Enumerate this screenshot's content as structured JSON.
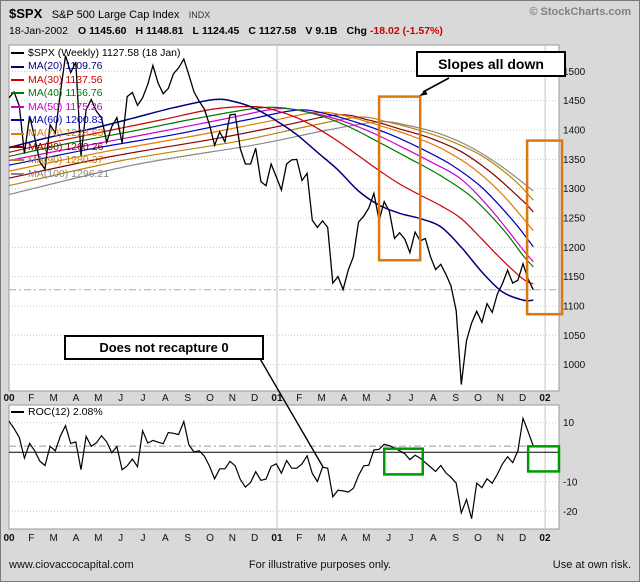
{
  "header": {
    "symbol": "$SPX",
    "name": "S&P 500 Large Cap Index",
    "exchange": "INDX",
    "copyright": "© StockCharts.com",
    "date": "18-Jan-2002",
    "quote": [
      {
        "label": "O",
        "value": "1145.60"
      },
      {
        "label": "H",
        "value": "1148.81"
      },
      {
        "label": "L",
        "value": "1124.45"
      },
      {
        "label": "C",
        "value": "1127.58"
      },
      {
        "label": "V",
        "value": "9.1B"
      },
      {
        "label": "Chg",
        "value": "-18.02 (-1.57%)",
        "value_color": "#cc0000"
      }
    ]
  },
  "legend": [
    {
      "text": "$SPX (Weekly) 1127.58 (18 Jan)",
      "color": "#000000"
    },
    {
      "text": "MA(20) 1109.76",
      "color": "#000080"
    },
    {
      "text": "MA(30) 1137.56",
      "color": "#cc0000"
    },
    {
      "text": "MA(40) 1166.76",
      "color": "#007700"
    },
    {
      "text": "MA(50) 1175.26",
      "color": "#cc00cc"
    },
    {
      "text": "MA(60) 1200.83",
      "color": "#0000b8"
    },
    {
      "text": "MA(70) 1228.53",
      "color": "#e07b00"
    },
    {
      "text": "MA(80) 1260.26",
      "color": "#8b0000"
    },
    {
      "text": "MA(90) 1280.37",
      "color": "#b8860b"
    },
    {
      "text": "MA(100) 1296.21",
      "color": "#888888"
    }
  ],
  "annotations": {
    "slopes_all_down": "Slopes all down",
    "does_not_recapture": "Does not recapture 0"
  },
  "footer": {
    "left": "www.ciovaccocapital.com",
    "center": "For illustrative purposes only.",
    "right": "Use at own risk."
  },
  "colors": {
    "background": "#d9d9d9",
    "plot_background": "#ffffff",
    "highlight_orange": "#dd7711",
    "highlight_green": "#009900",
    "change_negative": "#cc0000"
  },
  "chart_data": [
    {
      "panel": "price",
      "type": "line",
      "title": "$SPX (Weekly) 1127.58 (18 Jan)",
      "x_unit": "week index, 0 = Jan-2000, 102 = 18-Jan-2002",
      "x_labels": [
        "00",
        "F",
        "M",
        "A",
        "M",
        "J",
        "J",
        "A",
        "S",
        "O",
        "N",
        "D",
        "01",
        "F",
        "M",
        "A",
        "M",
        "J",
        "J",
        "A",
        "S",
        "O",
        "N",
        "D",
        "02"
      ],
      "ylim": [
        955,
        1545
      ],
      "yticks": [
        1000,
        1050,
        1100,
        1150,
        1200,
        1250,
        1300,
        1350,
        1400,
        1450,
        1500
      ],
      "last_close": 1127.58,
      "grid": true,
      "legend_position": "top-left",
      "series": [
        {
          "name": "$SPX",
          "color": "#000000",
          "values": [
            1455,
            1465,
            1441,
            1360,
            1424,
            1387,
            1346,
            1333,
            1409,
            1395,
            1464,
            1527,
            1498,
            1516,
            1356,
            1434,
            1452,
            1432,
            1421,
            1379,
            1406,
            1421,
            1378,
            1457,
            1464,
            1442,
            1455,
            1478,
            1510,
            1480,
            1462,
            1471,
            1496,
            1506,
            1521,
            1494,
            1465,
            1449,
            1436,
            1409,
            1374,
            1397,
            1380,
            1426,
            1427,
            1368,
            1342,
            1342,
            1369,
            1312,
            1305,
            1342,
            1320,
            1298,
            1342,
            1349,
            1350,
            1314,
            1326,
            1246,
            1234,
            1245,
            1234,
            1139,
            1150,
            1128,
            1161,
            1184,
            1243,
            1253,
            1267,
            1292,
            1246,
            1278,
            1261,
            1215,
            1225,
            1214,
            1191,
            1226,
            1211,
            1215,
            1184,
            1162,
            1171,
            1154,
            1134,
            1092,
            966,
            1041,
            1071,
            1091,
            1072,
            1104,
            1089,
            1120,
            1138,
            1161,
            1139,
            1144,
            1172,
            1146,
            1127.58
          ]
        },
        {
          "name": "MA(20)",
          "color": "#000080",
          "last": 1109.76,
          "points": [
            [
              0,
              1370
            ],
            [
              8,
              1388
            ],
            [
              16,
              1402
            ],
            [
              24,
              1420
            ],
            [
              32,
              1438
            ],
            [
              40,
              1452
            ],
            [
              44,
              1448
            ],
            [
              48,
              1436
            ],
            [
              52,
              1416
            ],
            [
              56,
              1392
            ],
            [
              60,
              1362
            ],
            [
              64,
              1332
            ],
            [
              68,
              1296
            ],
            [
              72,
              1272
            ],
            [
              76,
              1258
            ],
            [
              80,
              1249
            ],
            [
              84,
              1235
            ],
            [
              88,
              1200
            ],
            [
              92,
              1158
            ],
            [
              96,
              1124
            ],
            [
              100,
              1110
            ],
            [
              102,
              1109.76
            ]
          ]
        },
        {
          "name": "MA(30)",
          "color": "#cc0000",
          "last": 1137.56,
          "points": [
            [
              0,
              1362
            ],
            [
              10,
              1382
            ],
            [
              20,
              1400
            ],
            [
              30,
              1418
            ],
            [
              40,
              1436
            ],
            [
              48,
              1440
            ],
            [
              52,
              1433
            ],
            [
              56,
              1421
            ],
            [
              60,
              1403
            ],
            [
              64,
              1381
            ],
            [
              68,
              1356
            ],
            [
              72,
              1331
            ],
            [
              76,
              1308
            ],
            [
              80,
              1289
            ],
            [
              84,
              1271
            ],
            [
              88,
              1249
            ],
            [
              92,
              1214
            ],
            [
              96,
              1178
            ],
            [
              100,
              1146
            ],
            [
              102,
              1137.56
            ]
          ]
        },
        {
          "name": "MA(40)",
          "color": "#007700",
          "last": 1166.76,
          "points": [
            [
              0,
              1355
            ],
            [
              12,
              1378
            ],
            [
              24,
              1398
            ],
            [
              36,
              1419
            ],
            [
              48,
              1437
            ],
            [
              54,
              1437
            ],
            [
              60,
              1426
            ],
            [
              66,
              1406
            ],
            [
              72,
              1379
            ],
            [
              78,
              1351
            ],
            [
              84,
              1322
            ],
            [
              90,
              1286
            ],
            [
              96,
              1232
            ],
            [
              100,
              1186
            ],
            [
              102,
              1166.76
            ]
          ]
        },
        {
          "name": "MA(50)",
          "color": "#cc00cc",
          "last": 1175.26,
          "points": [
            [
              0,
              1348
            ],
            [
              14,
              1372
            ],
            [
              28,
              1395
            ],
            [
              42,
              1419
            ],
            [
              52,
              1436
            ],
            [
              58,
              1431
            ],
            [
              64,
              1418
            ],
            [
              70,
              1398
            ],
            [
              76,
              1373
            ],
            [
              82,
              1346
            ],
            [
              88,
              1316
            ],
            [
              94,
              1262
            ],
            [
              100,
              1196
            ],
            [
              102,
              1175.26
            ]
          ]
        },
        {
          "name": "MA(60)",
          "color": "#0000b8",
          "last": 1200.83,
          "points": [
            [
              0,
              1340
            ],
            [
              16,
              1368
            ],
            [
              32,
              1392
            ],
            [
              46,
              1417
            ],
            [
              56,
              1434
            ],
            [
              62,
              1427
            ],
            [
              68,
              1412
            ],
            [
              74,
              1393
            ],
            [
              80,
              1369
            ],
            [
              86,
              1341
            ],
            [
              92,
              1302
            ],
            [
              98,
              1246
            ],
            [
              102,
              1200.83
            ]
          ]
        },
        {
          "name": "MA(70)",
          "color": "#e07b00",
          "last": 1228.53,
          "points": [
            [
              0,
              1330
            ],
            [
              18,
              1362
            ],
            [
              36,
              1390
            ],
            [
              50,
              1414
            ],
            [
              60,
              1430
            ],
            [
              66,
              1423
            ],
            [
              72,
              1408
            ],
            [
              78,
              1391
            ],
            [
              84,
              1369
            ],
            [
              90,
              1337
            ],
            [
              96,
              1290
            ],
            [
              102,
              1228.53
            ]
          ]
        },
        {
          "name": "MA(80)",
          "color": "#8b0000",
          "last": 1260.26,
          "points": [
            [
              0,
              1318
            ],
            [
              20,
              1355
            ],
            [
              40,
              1385
            ],
            [
              54,
              1409
            ],
            [
              64,
              1426
            ],
            [
              70,
              1417
            ],
            [
              76,
              1402
            ],
            [
              82,
              1386
            ],
            [
              88,
              1363
            ],
            [
              94,
              1326
            ],
            [
              100,
              1279
            ],
            [
              102,
              1260.26
            ]
          ]
        },
        {
          "name": "MA(90)",
          "color": "#b8860b",
          "last": 1280.37,
          "points": [
            [
              0,
              1305
            ],
            [
              22,
              1348
            ],
            [
              44,
              1380
            ],
            [
              58,
              1406
            ],
            [
              68,
              1422
            ],
            [
              74,
              1413
            ],
            [
              80,
              1399
            ],
            [
              86,
              1381
            ],
            [
              92,
              1356
            ],
            [
              98,
              1317
            ],
            [
              102,
              1280.37
            ]
          ]
        },
        {
          "name": "MA(100)",
          "color": "#888888",
          "last": 1296.21,
          "points": [
            [
              0,
              1290
            ],
            [
              24,
              1340
            ],
            [
              48,
              1375
            ],
            [
              62,
              1400
            ],
            [
              72,
              1414
            ],
            [
              78,
              1407
            ],
            [
              84,
              1393
            ],
            [
              90,
              1370
            ],
            [
              96,
              1337
            ],
            [
              102,
              1296.21
            ]
          ]
        }
      ],
      "highlight_boxes": [
        {
          "weeks": [
            72,
            80
          ],
          "values": [
            1457,
            1178
          ],
          "color": "#dd7711"
        },
        {
          "weeks": [
            100.8,
            107.6
          ],
          "values": [
            1382,
            1086
          ],
          "color": "#dd7711"
        }
      ]
    },
    {
      "panel": "roc",
      "type": "line",
      "title": "ROC(12) 2.08%",
      "ylim": [
        -26,
        16
      ],
      "yticks": [
        10,
        -10,
        -20
      ],
      "zero_line": 0,
      "dashdot_level": 2.08,
      "last_value": 2.08,
      "series": [
        {
          "name": "ROC(12)",
          "color": "#000000",
          "values": [
            10.5,
            8.0,
            5.0,
            -2.0,
            3.0,
            0.5,
            -3.0,
            -4.5,
            2.0,
            0.5,
            5.5,
            9.0,
            3.0,
            3.5,
            -5.9,
            5.4,
            2.0,
            3.2,
            5.6,
            3.5,
            -0.2,
            1.9,
            -5.9,
            -4.6,
            -2.3,
            -4.9,
            7.3,
            3.1,
            4.0,
            3.4,
            2.9,
            6.7,
            6.4,
            6.0,
            10.4,
            2.5,
            0.1,
            0.5,
            -1.3,
            -4.7,
            -9.0,
            -5.6,
            -5.6,
            -3.1,
            -4.6,
            -9.2,
            -11.8,
            -10.2,
            -6.6,
            -9.5,
            -9.1,
            -4.8,
            -3.9,
            -7.1,
            -2.8,
            -5.4,
            -5.4,
            -3.9,
            -1.2,
            -7.2,
            -9.9,
            -5.1,
            -5.4,
            -15.1,
            -12.9,
            -13.1,
            -13.5,
            -12.2,
            -7.9,
            -4.6,
            -4.4,
            0.8,
            1.0,
            2.7,
            2.2,
            1.5,
            0.5,
            -0.5,
            -2.5,
            -1.0,
            -2.0,
            -3.5,
            -5.0,
            -6.5,
            -4.5,
            -7.0,
            -8.5,
            -10.5,
            -20.5,
            -16.0,
            -22.5,
            -10.5,
            -12.0,
            -9.0,
            -10.5,
            -7.5,
            -4.0,
            -1.5,
            -3.5,
            0.5,
            11.5,
            7.0,
            2.08
          ]
        }
      ],
      "highlight_boxes": [
        {
          "weeks": [
            73,
            80.5
          ],
          "values": [
            1.2,
            -7.5
          ],
          "color": "#009900"
        },
        {
          "weeks": [
            101,
            107
          ],
          "values": [
            2.0,
            -6.5
          ],
          "color": "#009900"
        }
      ]
    }
  ]
}
